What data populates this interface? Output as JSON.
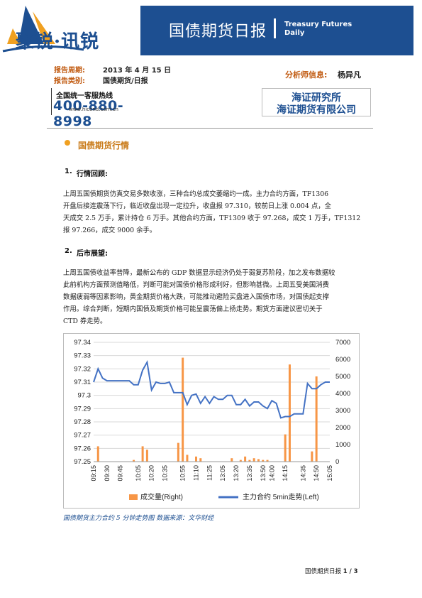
{
  "header": {
    "logo_main": "聚锐",
    "logo_dot": "·",
    "logo_sub": "讯锐",
    "title_cn": "国债期货日报",
    "title_en_1": "Treasury Futures",
    "title_en_2": "Daily"
  },
  "meta": {
    "period_label": "报告周期:",
    "period_value": "2013 年 4 月 15 日",
    "category_label": "报告类别:",
    "category_value": "国债期货/日报",
    "analyst_label": "分析师信息:",
    "analyst_value": "杨异凡"
  },
  "hotline": {
    "label": "全国统一客服热线",
    "number": "400-880-8998",
    "url": "www.hicend.com.cn"
  },
  "company": {
    "line1": "海证研究所",
    "line2": "海证期货有限公司"
  },
  "section": {
    "title": "国债期货行情"
  },
  "review": {
    "heading_num": "1.",
    "heading": "行情回顾:",
    "lines": [
      "上周五国债期货仿真交易多数收涨，三种合约总成交萎缩约一成。主力合约方面，TF1306",
      "开盘后接连震荡下行，临近收盘出现一定拉升，收盘报 97.310，较前日上涨 0.004 点，全",
      "天成交 2.5 万手，累计持仓 6 万手。其他合约方面，TF1309 收于 97.268，成交 1 万手，TF1312",
      "报 97.266，成交 9000 余手。"
    ]
  },
  "outlook": {
    "heading_num": "2.",
    "heading": "后市展望:",
    "lines": [
      "上周五国债收益率普降，最新公布的 GDP 数据显示经济仍处于弱复苏阶段，加之发布数据较",
      "此前机构方面预测值略低，判断可能对国债价格形成利好，但影响甚微。上周五受美国消费",
      "数据疲弱等因素影响，黄金期货价格大跌，可能推动避险买盘进入国债市场，对国债起支撑",
      "作用。综合判断，短期内国债及期货价格可能呈震荡偏上扬走势。期货方面建议密切关于",
      "CTD 券走势。"
    ]
  },
  "chart_data": {
    "type": "line",
    "x": [
      "09:15",
      "09:20",
      "09:25",
      "09:30",
      "09:35",
      "09:40",
      "09:45",
      "09:50",
      "09:55",
      "10:00",
      "10:05",
      "10:10",
      "10:15",
      "10:20",
      "10:25",
      "10:30",
      "10:35",
      "10:40",
      "10:45",
      "10:50",
      "10:55",
      "11:00",
      "11:05",
      "11:10",
      "11:15",
      "11:20",
      "11:25",
      "11:30",
      "13:00",
      "13:05",
      "13:10",
      "13:15",
      "13:20",
      "13:25",
      "13:30",
      "13:35",
      "13:40",
      "13:45",
      "13:50",
      "13:55",
      "14:00",
      "14:05",
      "14:10",
      "14:15",
      "14:20",
      "14:25",
      "14:30",
      "14:35",
      "14:40",
      "14:45",
      "14:50",
      "14:55",
      "15:00",
      "15:05"
    ],
    "x_ticks": [
      "09:15",
      "09:30",
      "09:45",
      "10:05",
      "10:20",
      "10:35",
      "10:55",
      "11:10",
      "11:25",
      "13:05",
      "13:20",
      "13:35",
      "13:50",
      "14:00",
      "14:15",
      "14:35",
      "14:50",
      "15:05"
    ],
    "series": [
      {
        "name": "成交量(Right)",
        "type": "bar",
        "axis": "right",
        "color": "#f79646",
        "values": [
          0,
          900,
          0,
          0,
          0,
          0,
          0,
          0,
          0,
          100,
          0,
          900,
          700,
          0,
          0,
          0,
          0,
          0,
          0,
          1100,
          6100,
          400,
          0,
          300,
          200,
          0,
          0,
          0,
          0,
          0,
          0,
          200,
          0,
          100,
          300,
          100,
          200,
          150,
          100,
          100,
          0,
          0,
          0,
          1600,
          5700,
          0,
          0,
          0,
          0,
          600,
          5000,
          0,
          0,
          0
        ]
      },
      {
        "name": "主力合约 5min走势(Left)",
        "type": "line",
        "axis": "left",
        "color": "#4472c4",
        "values": [
          97.31,
          97.32,
          97.313,
          97.311,
          97.311,
          97.311,
          97.311,
          97.311,
          97.311,
          97.308,
          97.308,
          97.319,
          97.325,
          97.304,
          97.31,
          97.309,
          97.309,
          97.31,
          97.302,
          97.302,
          97.302,
          97.293,
          97.3,
          97.301,
          97.294,
          97.299,
          97.294,
          97.299,
          97.297,
          97.297,
          97.3,
          97.3,
          97.293,
          97.293,
          97.297,
          97.292,
          97.295,
          97.295,
          97.292,
          97.29,
          97.296,
          97.294,
          97.283,
          97.284,
          97.284,
          97.286,
          97.286,
          97.286,
          97.309,
          97.305,
          97.305,
          97.308,
          97.31,
          97.31
        ]
      }
    ],
    "ylim_left": [
      97.25,
      97.34
    ],
    "yticks_left": [
      97.25,
      97.26,
      97.27,
      97.28,
      97.29,
      97.3,
      97.31,
      97.32,
      97.33,
      97.34
    ],
    "ylim_right": [
      0,
      7000
    ],
    "yticks_right": [
      0,
      1000,
      2000,
      3000,
      4000,
      5000,
      6000,
      7000
    ],
    "legend_position": "bottom",
    "grid": "horizontal"
  },
  "caption": "国债期货主力合约 5 分钟走势图  数据来源：文华财经",
  "footer": {
    "text": "国债期货日报",
    "page": "1 / 3"
  }
}
